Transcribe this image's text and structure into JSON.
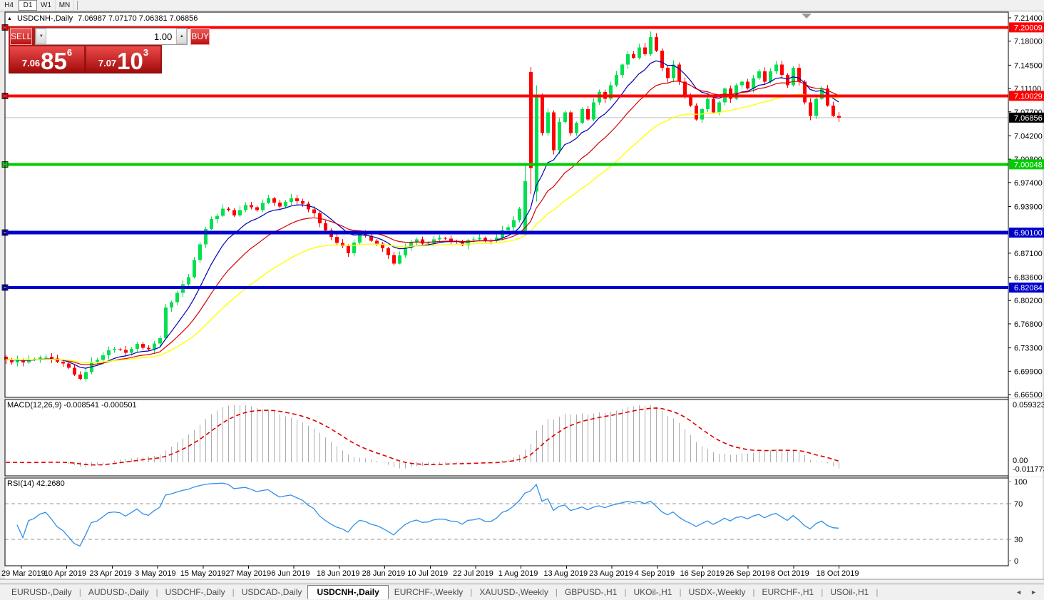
{
  "toolbar": {
    "timeframes": [
      {
        "label": "H4",
        "active": false
      },
      {
        "label": "D1",
        "active": true
      },
      {
        "label": "W1",
        "active": false
      },
      {
        "label": "MN",
        "active": false
      }
    ]
  },
  "title": {
    "collapse_icon": "▲",
    "symbol": "USDCNH-,Daily",
    "ohlc": "7.06987 7.07170 7.06381 7.06856"
  },
  "trade_panel": {
    "sell_label": "SELL",
    "buy_label": "BUY",
    "volume": "1.00",
    "down_icon": "▼",
    "up_icon": "▲",
    "sell_price": {
      "small": "7.06",
      "big": "85",
      "sup": "6"
    },
    "buy_price": {
      "small": "7.07",
      "big": "10",
      "sup": "3"
    }
  },
  "price_axis": {
    "ticks": [
      "7.21400",
      "7.18000",
      "7.14500",
      "7.11100",
      "7.07700",
      "7.04200",
      "7.00800",
      "6.97400",
      "6.93900",
      "6.87100",
      "6.83600",
      "6.80200",
      "6.76800",
      "6.73300",
      "6.69900",
      "6.66500"
    ],
    "badges": [
      {
        "text": "7.20009",
        "bg": "#FF0000",
        "fg": "#FFFFFF"
      },
      {
        "text": "7.10029",
        "bg": "#FF0000",
        "fg": "#FFFFFF"
      },
      {
        "text": "7.06856",
        "bg": "#000000",
        "fg": "#FFFFFF"
      },
      {
        "text": "7.00048",
        "bg": "#00CC00",
        "fg": "#FFFFFF"
      },
      {
        "text": "6.90100",
        "bg": "#0000CC",
        "fg": "#FFFFFF"
      },
      {
        "text": "6.82084",
        "bg": "#0000CC",
        "fg": "#FFFFFF"
      }
    ]
  },
  "macd_panel": {
    "label": "MACD(12,26,9) -0.008541 -0.000501",
    "axis_top": "0.059323",
    "axis_zero": "0.00",
    "axis_bottom": "-0.011773"
  },
  "rsi_panel": {
    "label": "RSI(14) 42.2680",
    "axis": [
      "100",
      "70",
      "30",
      "0"
    ]
  },
  "date_axis": [
    "29 Mar 2019",
    "10 Apr 2019",
    "23 Apr 2019",
    "3 May 2019",
    "15 May 2019",
    "27 May 2019",
    "6 Jun 2019",
    "18 Jun 2019",
    "28 Jun 2019",
    "10 Jul 2019",
    "22 Jul 2019",
    "1 Aug 2019",
    "13 Aug 2019",
    "23 Aug 2019",
    "4 Sep 2019",
    "16 Sep 2019",
    "26 Sep 2019",
    "8 Oct 2019",
    "18 Oct 2019"
  ],
  "tab_bar": {
    "left_arrow": "◄",
    "right_arrow": "►",
    "tabs": [
      {
        "label": "EURUSD-,Daily",
        "active": false
      },
      {
        "label": "AUDUSD-,Daily",
        "active": false
      },
      {
        "label": "USDCHF-,Daily",
        "active": false
      },
      {
        "label": "USDCAD-,Daily",
        "active": false
      },
      {
        "label": "USDCNH-,Daily",
        "active": true
      },
      {
        "label": "EURCHF-,Weekly",
        "active": false
      },
      {
        "label": "XAUUSD-,Weekly",
        "active": false
      },
      {
        "label": "GBPUSD-,H1",
        "active": false
      },
      {
        "label": "UKOil-,H1",
        "active": false
      },
      {
        "label": "USDX-,Weekly",
        "active": false
      },
      {
        "label": "EURCHF-,H1",
        "active": false
      },
      {
        "label": "USOil-,H1",
        "active": false
      }
    ]
  },
  "colors": {
    "up": "#00E050",
    "down": "#FF0000",
    "ma_fast": "#0000B4",
    "ma_mid": "#D40000",
    "ma_slow": "#FFFF00",
    "macd_bar": "#ACACAC",
    "macd_signal": "#E00000",
    "rsi_line": "#2E8FE8",
    "level_red": "#FF0000",
    "level_green": "#00CC00",
    "level_blue": "#0000CC",
    "current_line": "#C0C0C0"
  },
  "chart_data": {
    "type": "candlestick",
    "symbol": "USDCNH",
    "period": "Daily",
    "price_range": [
      6.665,
      7.214
    ],
    "current_price": 7.06856,
    "levels": [
      {
        "price": 7.20009,
        "color": "#FF0000",
        "width": 4
      },
      {
        "price": 7.10029,
        "color": "#FF0000",
        "width": 4
      },
      {
        "price": 7.00048,
        "color": "#00CC00",
        "width": 4
      },
      {
        "price": 6.901,
        "color": "#0000CC",
        "width": 5
      },
      {
        "price": 6.82084,
        "color": "#0000CC",
        "width": 4
      }
    ],
    "candle_count": 147,
    "close_anchors": [
      [
        0,
        6.716
      ],
      [
        3,
        6.712
      ],
      [
        6,
        6.719
      ],
      [
        9,
        6.713
      ],
      [
        11,
        6.704
      ],
      [
        13,
        6.688
      ],
      [
        15,
        6.713
      ],
      [
        17,
        6.722
      ],
      [
        19,
        6.731
      ],
      [
        21,
        6.726
      ],
      [
        23,
        6.739
      ],
      [
        25,
        6.731
      ],
      [
        27,
        6.747
      ],
      [
        28,
        6.792
      ],
      [
        30,
        6.813
      ],
      [
        32,
        6.836
      ],
      [
        33,
        6.861
      ],
      [
        34,
        6.884
      ],
      [
        35,
        6.906
      ],
      [
        36,
        6.921
      ],
      [
        38,
        6.936
      ],
      [
        40,
        6.926
      ],
      [
        42,
        6.941
      ],
      [
        44,
        6.934
      ],
      [
        46,
        6.951
      ],
      [
        48,
        6.939
      ],
      [
        50,
        6.951
      ],
      [
        52,
        6.943
      ],
      [
        54,
        6.929
      ],
      [
        56,
        6.904
      ],
      [
        58,
        6.886
      ],
      [
        60,
        6.871
      ],
      [
        62,
        6.899
      ],
      [
        64,
        6.889
      ],
      [
        66,
        6.878
      ],
      [
        68,
        6.856
      ],
      [
        70,
        6.879
      ],
      [
        72,
        6.891
      ],
      [
        74,
        6.886
      ],
      [
        76,
        6.893
      ],
      [
        78,
        6.889
      ],
      [
        80,
        6.883
      ],
      [
        82,
        6.891
      ],
      [
        84,
        6.889
      ],
      [
        86,
        6.894
      ],
      [
        88,
        6.909
      ],
      [
        90,
        6.936
      ],
      [
        91,
        6.976
      ],
      [
        92,
        6.995
      ],
      [
        93,
        7.102
      ],
      [
        94,
        7.046
      ],
      [
        95,
        7.076
      ],
      [
        96,
        7.021
      ],
      [
        97,
        7.062
      ],
      [
        98,
        7.076
      ],
      [
        99,
        7.046
      ],
      [
        100,
        7.061
      ],
      [
        101,
        7.081
      ],
      [
        102,
        7.066
      ],
      [
        103,
        7.091
      ],
      [
        104,
        7.106
      ],
      [
        105,
        7.096
      ],
      [
        106,
        7.116
      ],
      [
        107,
        7.131
      ],
      [
        108,
        7.146
      ],
      [
        109,
        7.161
      ],
      [
        110,
        7.156
      ],
      [
        111,
        7.171
      ],
      [
        112,
        7.161
      ],
      [
        113,
        7.186
      ],
      [
        114,
        7.166
      ],
      [
        115,
        7.141
      ],
      [
        116,
        7.126
      ],
      [
        117,
        7.146
      ],
      [
        118,
        7.121
      ],
      [
        119,
        7.101
      ],
      [
        120,
        7.086
      ],
      [
        121,
        7.066
      ],
      [
        122,
        7.081
      ],
      [
        123,
        7.096
      ],
      [
        124,
        7.076
      ],
      [
        125,
        7.091
      ],
      [
        126,
        7.111
      ],
      [
        127,
        7.096
      ],
      [
        128,
        7.116
      ],
      [
        129,
        7.121
      ],
      [
        130,
        7.111
      ],
      [
        131,
        7.126
      ],
      [
        132,
        7.136
      ],
      [
        133,
        7.121
      ],
      [
        134,
        7.136
      ],
      [
        135,
        7.146
      ],
      [
        136,
        7.131
      ],
      [
        137,
        7.116
      ],
      [
        138,
        7.141
      ],
      [
        139,
        7.121
      ],
      [
        140,
        7.091
      ],
      [
        141,
        7.071
      ],
      [
        142,
        7.096
      ],
      [
        143,
        7.111
      ],
      [
        144,
        7.086
      ],
      [
        145,
        7.071
      ],
      [
        146,
        7.0686
      ]
    ],
    "candle_overrides": {
      "91": {
        "o": 6.902,
        "h": 7.001,
        "l": 6.896
      },
      "92": {
        "o": 7.135,
        "h": 7.142,
        "l": 6.957
      },
      "93": {
        "o": 6.961,
        "h": 7.116,
        "l": 6.946
      },
      "113": {
        "h": 7.194
      }
    },
    "moving_average_periods": [
      9,
      18,
      36
    ],
    "macd": {
      "fast": 12,
      "slow": 26,
      "signal": 9,
      "last": -0.008541,
      "signal_last": -0.000501,
      "scale_max": 0.059323,
      "scale_min": -0.011773
    },
    "rsi": {
      "period": 14,
      "last": 42.268,
      "levels": [
        70,
        30
      ],
      "range": [
        0,
        100
      ]
    }
  }
}
